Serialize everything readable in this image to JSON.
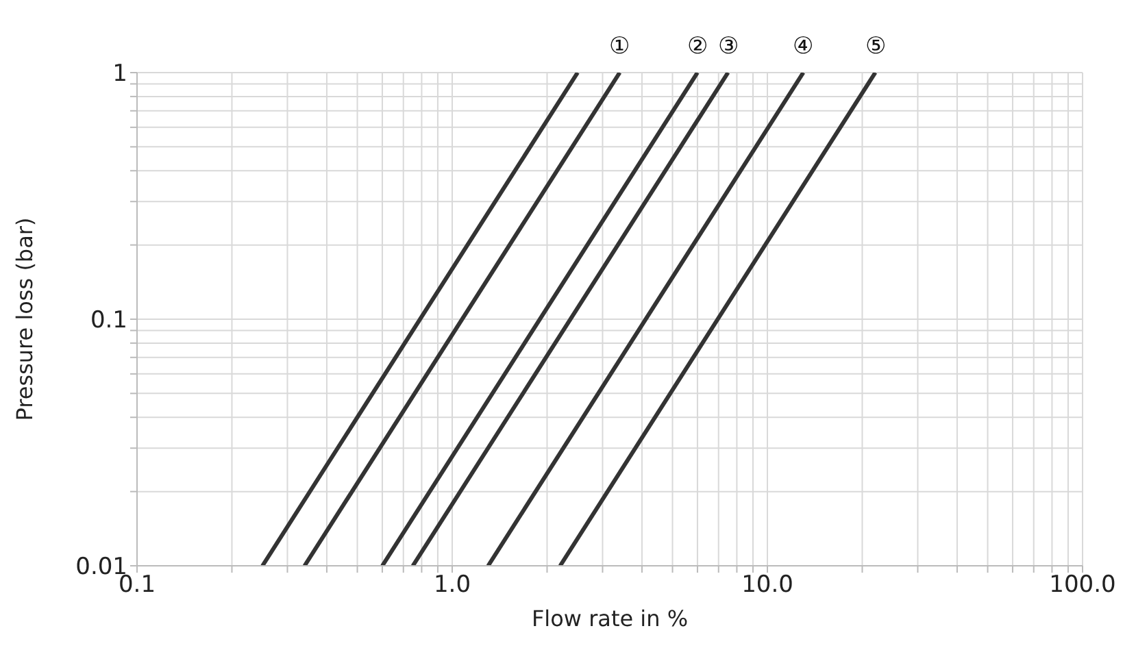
{
  "chart_data": {
    "type": "line",
    "xlabel": "Flow rate in %",
    "ylabel": "Pressure loss (bar)",
    "log": "xy",
    "grid": true,
    "marker": "none",
    "line_style": "solid",
    "xlim": [
      0.1,
      100
    ],
    "ylim": [
      0.01,
      1
    ],
    "xticks": [
      {
        "value": 0.1,
        "label": "0.1"
      },
      {
        "value": 0.2,
        "label": null
      },
      {
        "value": 0.3,
        "label": null
      },
      {
        "value": 0.4,
        "label": null
      },
      {
        "value": 0.5,
        "label": null
      },
      {
        "value": 0.6,
        "label": null
      },
      {
        "value": 0.7,
        "label": null
      },
      {
        "value": 0.8,
        "label": null
      },
      {
        "value": 0.9,
        "label": null
      },
      {
        "value": 1,
        "label": "1.0"
      },
      {
        "value": 2,
        "label": null
      },
      {
        "value": 3,
        "label": null
      },
      {
        "value": 4,
        "label": null
      },
      {
        "value": 5,
        "label": null
      },
      {
        "value": 6,
        "label": null
      },
      {
        "value": 7,
        "label": null
      },
      {
        "value": 8,
        "label": null
      },
      {
        "value": 9,
        "label": null
      },
      {
        "value": 10,
        "label": "10.0"
      },
      {
        "value": 20,
        "label": null
      },
      {
        "value": 30,
        "label": null
      },
      {
        "value": 40,
        "label": null
      },
      {
        "value": 50,
        "label": null
      },
      {
        "value": 60,
        "label": null
      },
      {
        "value": 70,
        "label": null
      },
      {
        "value": 80,
        "label": null
      },
      {
        "value": 90,
        "label": null
      },
      {
        "value": 100,
        "label": "100.0"
      }
    ],
    "yticks": [
      0.01,
      {
        "value": 0.02,
        "label": null
      },
      {
        "value": 0.03,
        "label": null
      },
      {
        "value": 0.04,
        "label": null
      },
      {
        "value": 0.05,
        "label": null
      },
      {
        "value": 0.06,
        "label": null
      },
      {
        "value": 0.07,
        "label": null
      },
      {
        "value": 0.08,
        "label": null
      },
      {
        "value": 0.09,
        "label": null
      },
      0.1,
      {
        "value": 0.2,
        "label": null
      },
      {
        "value": 0.3,
        "label": null
      },
      {
        "value": 0.4,
        "label": null
      },
      {
        "value": 0.5,
        "label": null
      },
      {
        "value": 0.6,
        "label": null
      },
      {
        "value": 0.7,
        "label": null
      },
      {
        "value": 0.8,
        "label": null
      },
      {
        "value": 0.9,
        "label": null
      },
      1
    ],
    "series": [
      {
        "color": "#333333",
        "x": [
          0.25,
          2.5
        ],
        "values": [
          0.01,
          1
        ]
      },
      {
        "name": "①",
        "color": "#333333",
        "x": [
          0.34,
          3.4
        ],
        "values": [
          0.01,
          1
        ]
      },
      {
        "name": "②",
        "color": "#333333",
        "x": [
          0.6,
          6
        ],
        "values": [
          0.01,
          1
        ]
      },
      {
        "name": "③",
        "color": "#333333",
        "x": [
          0.75,
          7.5
        ],
        "values": [
          0.01,
          1
        ]
      },
      {
        "name": "④",
        "color": "#333333",
        "x": [
          1.3,
          13
        ],
        "values": [
          0.01,
          1
        ]
      },
      {
        "name": "⑤",
        "color": "#333333",
        "x": [
          2.2,
          22
        ],
        "values": [
          0.01,
          1
        ]
      }
    ]
  }
}
